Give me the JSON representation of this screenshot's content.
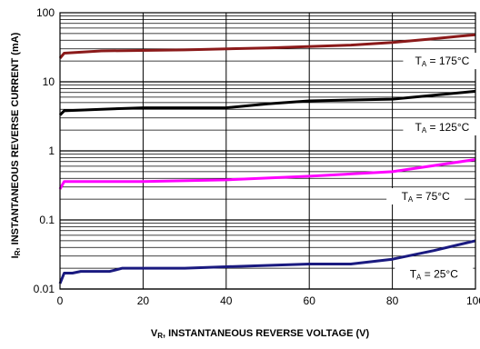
{
  "chart_data": {
    "type": "line",
    "xlabel_main": "V",
    "xlabel_sub": "R",
    "xlabel_rest": ", INSTANTANEOUS REVERSE VOLTAGE (V)",
    "ylabel_main": "I",
    "ylabel_sub": "R",
    "ylabel_rest": ", INSTANTANEOUS REVERSE CURRENT (mA)",
    "xlim": [
      0,
      100
    ],
    "ylim": [
      0.01,
      100
    ],
    "yscale": "log",
    "grid": true,
    "x_ticks": [
      "0",
      "20",
      "40",
      "60",
      "80",
      "100"
    ],
    "y_ticks": [
      "0.01",
      "0.1",
      "1",
      "10",
      "100"
    ],
    "series": [
      {
        "label_main": "T",
        "label_sub": "A",
        "label_rest": " = 175°C",
        "color": "#8b1a1a",
        "label_at": [
          92,
          20
        ],
        "points": [
          [
            0,
            22
          ],
          [
            1,
            26
          ],
          [
            10,
            28
          ],
          [
            30,
            29
          ],
          [
            50,
            31
          ],
          [
            70,
            34
          ],
          [
            80,
            37
          ],
          [
            90,
            42
          ],
          [
            100,
            48
          ]
        ]
      },
      {
        "label_main": "T",
        "label_sub": "A",
        "label_rest": " = 125°C",
        "color": "#000000",
        "label_at": [
          92,
          2.2
        ],
        "points": [
          [
            0,
            3.3
          ],
          [
            1,
            3.8
          ],
          [
            10,
            4.0
          ],
          [
            20,
            4.2
          ],
          [
            40,
            4.2
          ],
          [
            50,
            4.8
          ],
          [
            60,
            5.3
          ],
          [
            80,
            5.6
          ],
          [
            100,
            7.3
          ]
        ]
      },
      {
        "label_main": "T",
        "label_sub": "A",
        "label_rest": " = 75°C",
        "color": "#ff00ff",
        "label_at": [
          88,
          0.22
        ],
        "points": [
          [
            0,
            0.28
          ],
          [
            1,
            0.36
          ],
          [
            10,
            0.36
          ],
          [
            20,
            0.36
          ],
          [
            40,
            0.38
          ],
          [
            60,
            0.43
          ],
          [
            80,
            0.5
          ],
          [
            100,
            0.75
          ]
        ]
      },
      {
        "label_main": "T",
        "label_sub": "A",
        "label_rest": " = 25°C",
        "color": "#1a1a80",
        "label_at": [
          90,
          0.0165
        ],
        "points": [
          [
            0,
            0.012
          ],
          [
            1,
            0.017
          ],
          [
            3,
            0.017
          ],
          [
            5,
            0.018
          ],
          [
            12,
            0.018
          ],
          [
            15,
            0.02
          ],
          [
            30,
            0.02
          ],
          [
            40,
            0.021
          ],
          [
            60,
            0.023
          ],
          [
            70,
            0.023
          ],
          [
            80,
            0.027
          ],
          [
            90,
            0.036
          ],
          [
            100,
            0.05
          ]
        ]
      }
    ]
  }
}
